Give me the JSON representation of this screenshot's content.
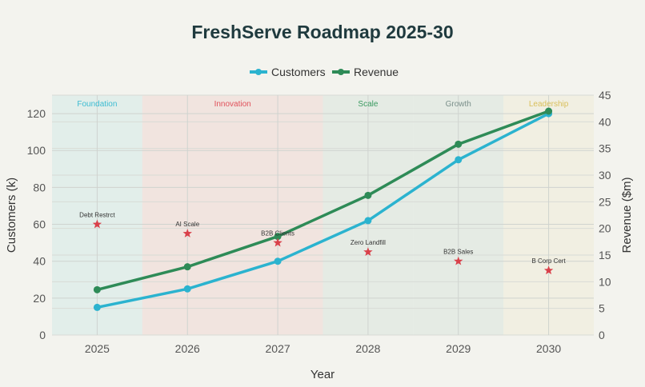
{
  "chart_data": {
    "type": "line",
    "title": "FreshServe Roadmap 2025-30",
    "xlabel": "Year",
    "ylabel": "Customers (k)",
    "y2label": "Revenue ($m)",
    "categories": [
      "2025",
      "2026",
      "2027",
      "2028",
      "2029",
      "2030"
    ],
    "ylim": [
      0,
      130
    ],
    "y2lim": [
      0,
      45
    ],
    "yticks": [
      0,
      20,
      40,
      60,
      80,
      100,
      120
    ],
    "y2ticks": [
      0,
      5,
      10,
      15,
      20,
      25,
      30,
      35,
      40,
      45
    ],
    "grid": true,
    "legend_position": "top-center",
    "series": [
      {
        "name": "Customers",
        "axis": "left",
        "color": "#2bb3cf",
        "values": [
          15,
          25,
          40,
          62,
          95,
          120
        ]
      },
      {
        "name": "Revenue",
        "axis": "right",
        "color": "#2e8b57",
        "values": [
          8.5,
          12.8,
          18.5,
          26.2,
          35.8,
          42
        ]
      }
    ],
    "phases": [
      {
        "label": "Foundation",
        "from": "2025",
        "to": "2025",
        "bg": "#e2eeea",
        "color": "#3bbbd2"
      },
      {
        "label": "Innovation",
        "from": "2026",
        "to": "2027",
        "bg": "#f1e4df",
        "color": "#e0505a"
      },
      {
        "label": "Scale",
        "from": "2028",
        "to": "2028",
        "bg": "#e5ebe4",
        "color": "#3a9a60"
      },
      {
        "label": "Growth",
        "from": "2029",
        "to": "2029",
        "bg": "#e5ebe4",
        "color": "#7a8f8a"
      },
      {
        "label": "Leadership",
        "from": "2030",
        "to": "2030",
        "bg": "#f1efe2",
        "color": "#d9bf5a"
      }
    ],
    "milestones": [
      {
        "x": "2025",
        "y": 60,
        "label": "Debt Restrct"
      },
      {
        "x": "2026",
        "y": 55,
        "label": "AI Scale"
      },
      {
        "x": "2027",
        "y": 50,
        "label": "B2B Clients"
      },
      {
        "x": "2028",
        "y": 45,
        "label": "Zero Landfill"
      },
      {
        "x": "2029",
        "y": 40,
        "label": "B2B Sales"
      },
      {
        "x": "2030",
        "y": 35,
        "label": "B Corp Cert"
      }
    ],
    "milestone_color": "#d9404a"
  }
}
